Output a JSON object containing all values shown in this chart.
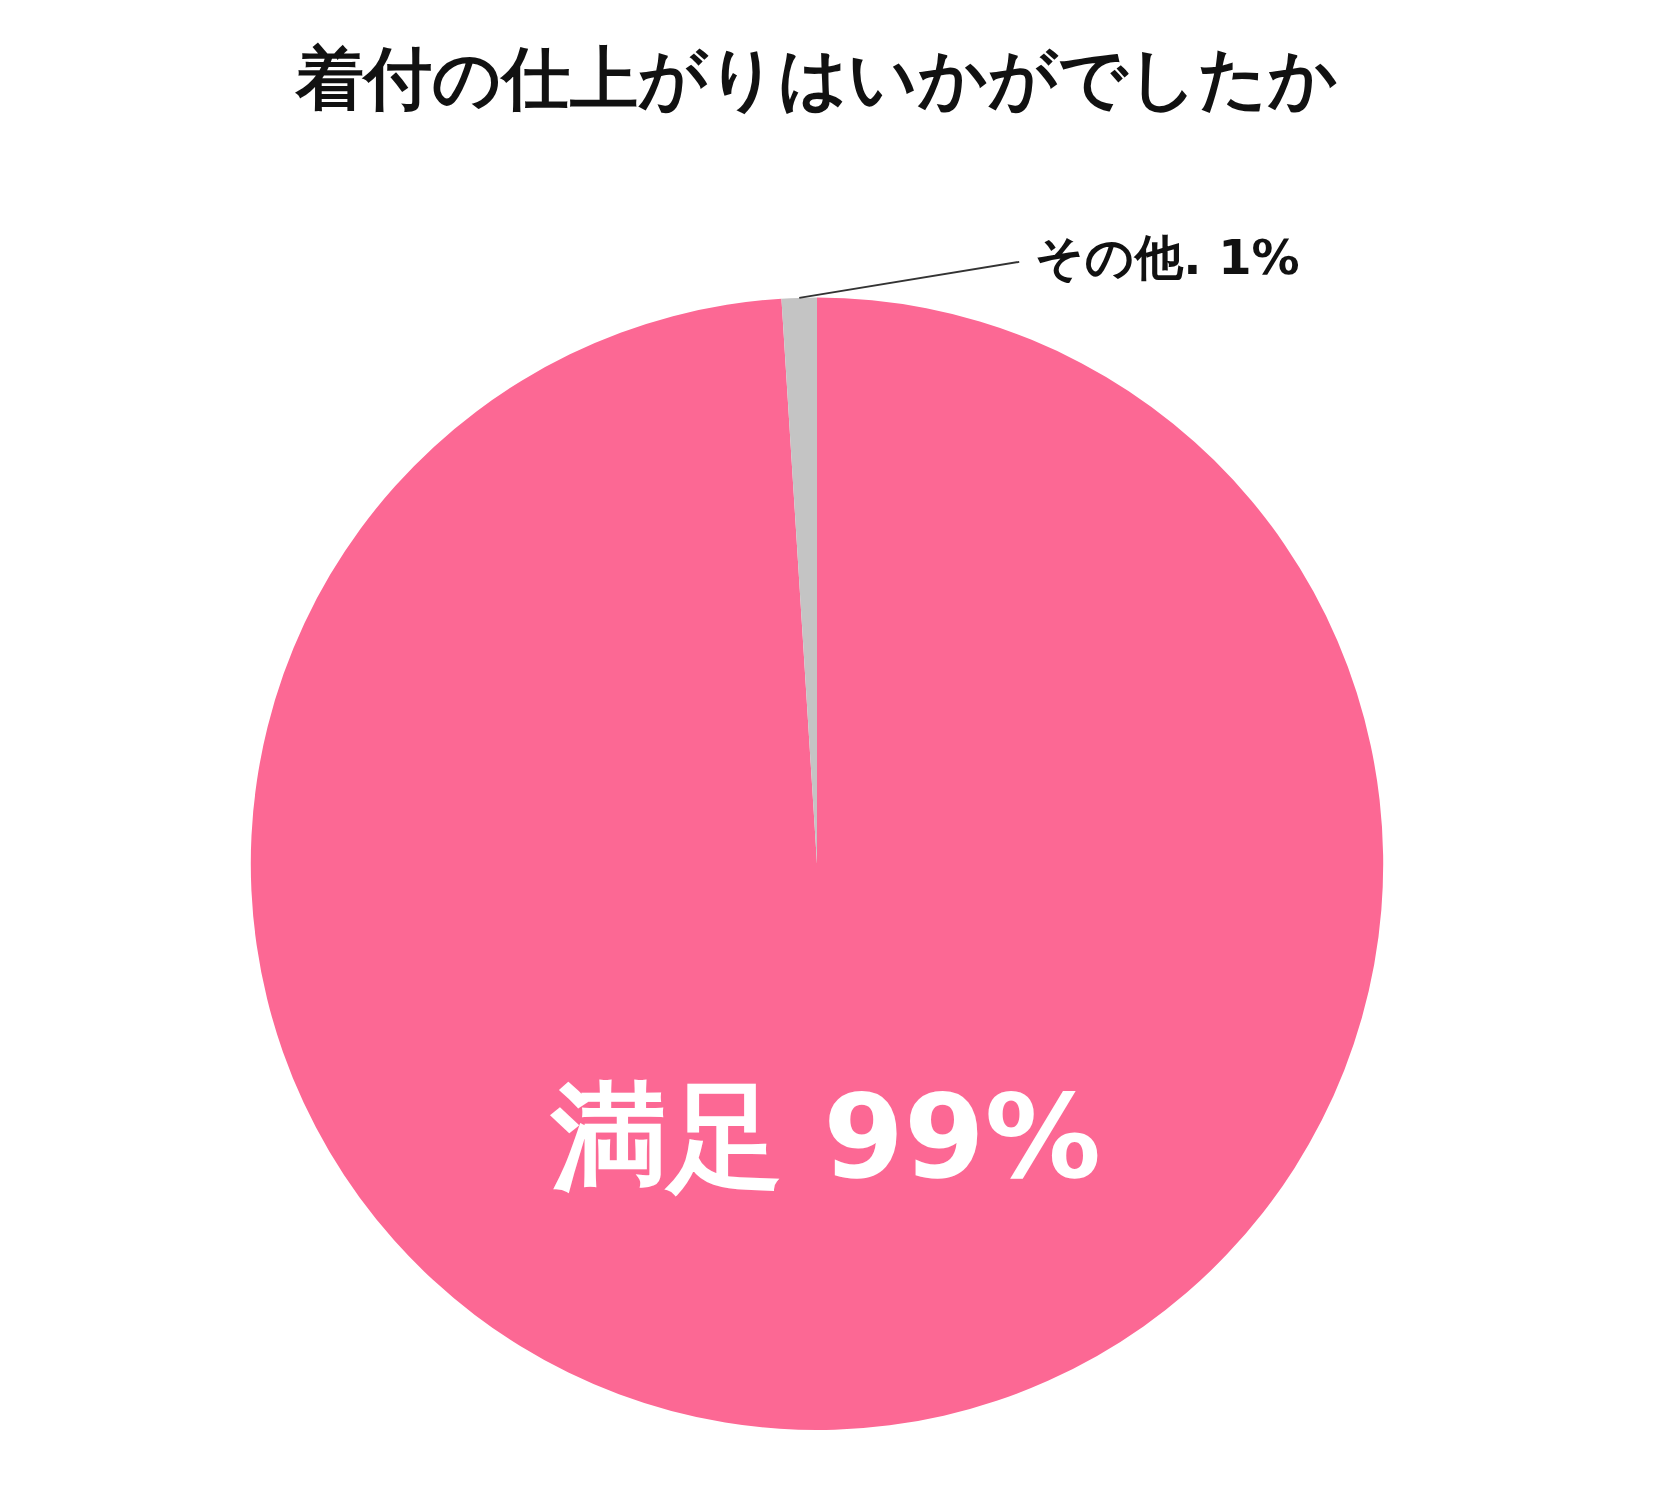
{
  "chart_data": {
    "type": "pie",
    "title": "着付の仕上がりはいかがでしたか",
    "categories": [
      "満足",
      "その他."
    ],
    "values": [
      99,
      1
    ],
    "colors": [
      "#fc6894",
      "#c4c4c4"
    ],
    "value_labels": [
      "99%",
      "1%"
    ],
    "legend": false
  }
}
